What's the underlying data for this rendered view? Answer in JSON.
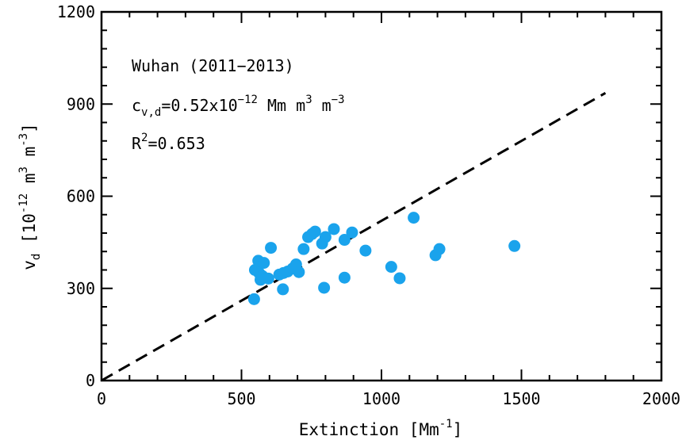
{
  "chart_data": {
    "type": "scatter",
    "xlabel": "Extinction [Mm",
    "xlabel_sup": "-1",
    "xlabel_end": "]",
    "ylabel": "v",
    "ylabel_sub": "d",
    "ylabel_unit_a": " [10",
    "ylabel_unit_sup1": "-12",
    "ylabel_unit_b": " m",
    "ylabel_unit_sup2": "3",
    "ylabel_unit_c": " m",
    "ylabel_unit_sup3": "-3",
    "ylabel_unit_end": "]",
    "xlim": [
      0,
      2000
    ],
    "ylim": [
      0,
      1200
    ],
    "xticks": [
      0,
      500,
      1000,
      1500,
      2000
    ],
    "yticks": [
      0,
      300,
      600,
      900,
      1200
    ],
    "grid": false,
    "point_color": "#1aa3ec",
    "annotations": {
      "line1": "Wuhan (2011−2013)",
      "line2_a": "c",
      "line2_sub": "v,d",
      "line2_b": "=0.52x10",
      "line2_sup1": "−12",
      "line2_c": " Mm m",
      "line2_sup2": "3",
      "line2_d": " m",
      "line2_sup3": "−3",
      "line3_a": "R",
      "line3_sup": "2",
      "line3_b": "=0.653"
    },
    "fit_line": {
      "slope": 0.52,
      "x": [
        0,
        1800
      ]
    },
    "points": [
      [
        545,
        265
      ],
      [
        548,
        360
      ],
      [
        560,
        390
      ],
      [
        563,
        350
      ],
      [
        568,
        328
      ],
      [
        575,
        340
      ],
      [
        580,
        383
      ],
      [
        596,
        332
      ],
      [
        605,
        432
      ],
      [
        635,
        345
      ],
      [
        648,
        297
      ],
      [
        650,
        350
      ],
      [
        665,
        355
      ],
      [
        683,
        365
      ],
      [
        695,
        378
      ],
      [
        705,
        353
      ],
      [
        722,
        428
      ],
      [
        738,
        467
      ],
      [
        752,
        477
      ],
      [
        763,
        485
      ],
      [
        788,
        446
      ],
      [
        800,
        467
      ],
      [
        795,
        302
      ],
      [
        830,
        493
      ],
      [
        868,
        458
      ],
      [
        895,
        482
      ],
      [
        868,
        335
      ],
      [
        943,
        423
      ],
      [
        1035,
        370
      ],
      [
        1065,
        333
      ],
      [
        1115,
        530
      ],
      [
        1193,
        408
      ],
      [
        1207,
        428
      ],
      [
        1475,
        438
      ]
    ]
  }
}
